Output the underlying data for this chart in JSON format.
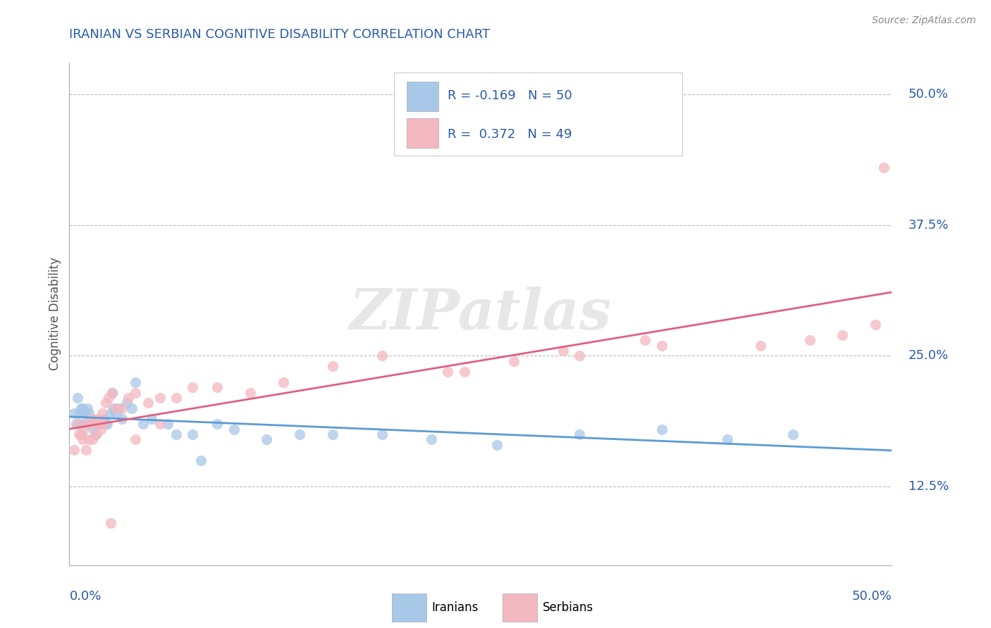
{
  "title": "IRANIAN VS SERBIAN COGNITIVE DISABILITY CORRELATION CHART",
  "source": "Source: ZipAtlas.com",
  "ylabel": "Cognitive Disability",
  "xmin": 0.0,
  "xmax": 0.5,
  "ymin": 0.05,
  "ymax": 0.53,
  "yticks": [
    0.125,
    0.25,
    0.375,
    0.5
  ],
  "ytick_labels": [
    "12.5%",
    "25.0%",
    "37.5%",
    "50.0%"
  ],
  "iranian_R": -0.169,
  "iranian_N": 50,
  "serbian_R": 0.372,
  "serbian_N": 49,
  "iranian_color": "#a8c8e8",
  "serbian_color": "#f4b8c0",
  "iranian_line_color": "#5b9bd5",
  "serbian_line_color": "#e06080",
  "legend_text_color": "#2b5ba8",
  "title_color": "#2b5ba8",
  "axis_label_color": "#555555",
  "tick_label_color": "#2b5ba8",
  "background_color": "#ffffff",
  "grid_color": "#bbbbbb",
  "watermark": "ZIPatlas",
  "iranians_x": [
    0.003,
    0.004,
    0.005,
    0.006,
    0.007,
    0.007,
    0.008,
    0.009,
    0.01,
    0.01,
    0.011,
    0.012,
    0.013,
    0.014,
    0.015,
    0.016,
    0.017,
    0.018,
    0.019,
    0.02,
    0.021,
    0.022,
    0.023,
    0.025,
    0.026,
    0.027,
    0.028,
    0.03,
    0.032,
    0.035,
    0.038,
    0.04,
    0.045,
    0.05,
    0.06,
    0.065,
    0.075,
    0.08,
    0.09,
    0.1,
    0.12,
    0.14,
    0.16,
    0.19,
    0.22,
    0.26,
    0.31,
    0.36,
    0.4,
    0.44
  ],
  "iranians_y": [
    0.195,
    0.185,
    0.21,
    0.195,
    0.2,
    0.185,
    0.2,
    0.195,
    0.195,
    0.185,
    0.2,
    0.195,
    0.19,
    0.19,
    0.18,
    0.175,
    0.185,
    0.185,
    0.185,
    0.185,
    0.19,
    0.185,
    0.185,
    0.195,
    0.215,
    0.2,
    0.195,
    0.2,
    0.19,
    0.205,
    0.2,
    0.225,
    0.185,
    0.19,
    0.185,
    0.175,
    0.175,
    0.15,
    0.185,
    0.18,
    0.17,
    0.175,
    0.175,
    0.175,
    0.17,
    0.165,
    0.175,
    0.18,
    0.17,
    0.175
  ],
  "serbians_x": [
    0.003,
    0.005,
    0.006,
    0.007,
    0.008,
    0.009,
    0.01,
    0.011,
    0.012,
    0.013,
    0.014,
    0.015,
    0.016,
    0.017,
    0.018,
    0.019,
    0.02,
    0.021,
    0.022,
    0.024,
    0.026,
    0.028,
    0.032,
    0.036,
    0.04,
    0.048,
    0.055,
    0.065,
    0.075,
    0.09,
    0.11,
    0.13,
    0.16,
    0.19,
    0.23,
    0.27,
    0.31,
    0.36,
    0.04,
    0.055,
    0.24,
    0.3,
    0.35,
    0.42,
    0.45,
    0.47,
    0.49,
    0.495,
    0.025
  ],
  "serbians_y": [
    0.16,
    0.185,
    0.175,
    0.175,
    0.17,
    0.18,
    0.16,
    0.185,
    0.17,
    0.19,
    0.17,
    0.185,
    0.175,
    0.19,
    0.185,
    0.18,
    0.195,
    0.185,
    0.205,
    0.21,
    0.215,
    0.2,
    0.2,
    0.21,
    0.215,
    0.205,
    0.21,
    0.21,
    0.22,
    0.22,
    0.215,
    0.225,
    0.24,
    0.25,
    0.235,
    0.245,
    0.25,
    0.26,
    0.17,
    0.185,
    0.235,
    0.255,
    0.265,
    0.26,
    0.265,
    0.27,
    0.28,
    0.43,
    0.09
  ]
}
